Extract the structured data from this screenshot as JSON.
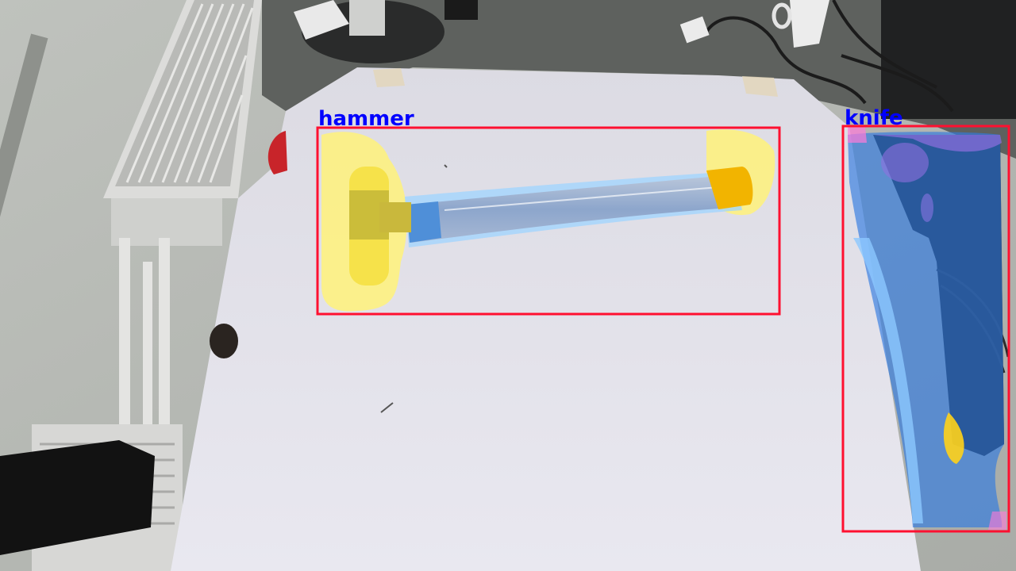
{
  "detections": [
    {
      "label": "hammer",
      "box_color": "#ff1030",
      "label_color": "#0000ff",
      "mask_colors": [
        "#fff27a",
        "#9fd4ff"
      ]
    },
    {
      "label": "knife",
      "box_color": "#ff1030",
      "label_color": "#0000ff",
      "mask_colors": [
        "#2f7ae0",
        "#8f6fe0",
        "#ffd21a",
        "#ff7ad9"
      ]
    }
  ],
  "scene_colors": {
    "paper": "#e6e5ee",
    "wall": "#c9cbc6",
    "desk": "#5c5f5c",
    "radiator": "#dcdcda",
    "cable": "#1a1a1a"
  }
}
